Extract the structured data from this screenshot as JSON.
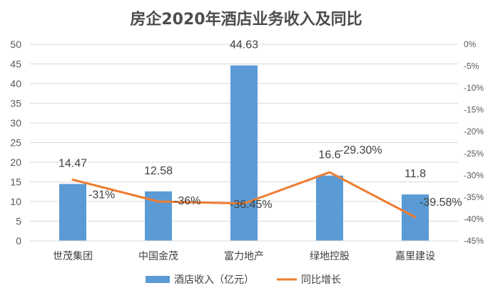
{
  "chart_data": {
    "type": "bar",
    "title": "房企2020年酒店业务收入及同比",
    "categories": [
      "世茂集团",
      "中国金茂",
      "富力地产",
      "绿地控股",
      "嘉里建设"
    ],
    "series": [
      {
        "name": "酒店收入（亿元）",
        "type": "bar",
        "axis": "left",
        "color": "#5b9bd5",
        "values": [
          14.47,
          12.58,
          44.63,
          16.6,
          11.8
        ],
        "labels": [
          "14.47",
          "12.58",
          "44.63",
          "16.6",
          "11.8"
        ]
      },
      {
        "name": "同比增长",
        "type": "line",
        "axis": "right",
        "color": "#ed7d31",
        "values": [
          -31,
          -36,
          -36.45,
          -29.3,
          -39.58
        ],
        "labels": [
          "-31%",
          "-36%",
          "-36.45%",
          "-29.30%",
          "-39.58%"
        ]
      }
    ],
    "y_left": {
      "min": 0,
      "max": 50,
      "step": 5,
      "ticks": [
        "0",
        "5",
        "10",
        "15",
        "20",
        "25",
        "30",
        "35",
        "40",
        "45",
        "50"
      ]
    },
    "y_right": {
      "min": -45,
      "max": 0,
      "step": 5,
      "ticks": [
        "0%",
        "-5%",
        "-10%",
        "-15%",
        "-20%",
        "-25%",
        "-30%",
        "-35%",
        "-40%",
        "-45%"
      ]
    },
    "grid": true,
    "legend": "bottom"
  }
}
